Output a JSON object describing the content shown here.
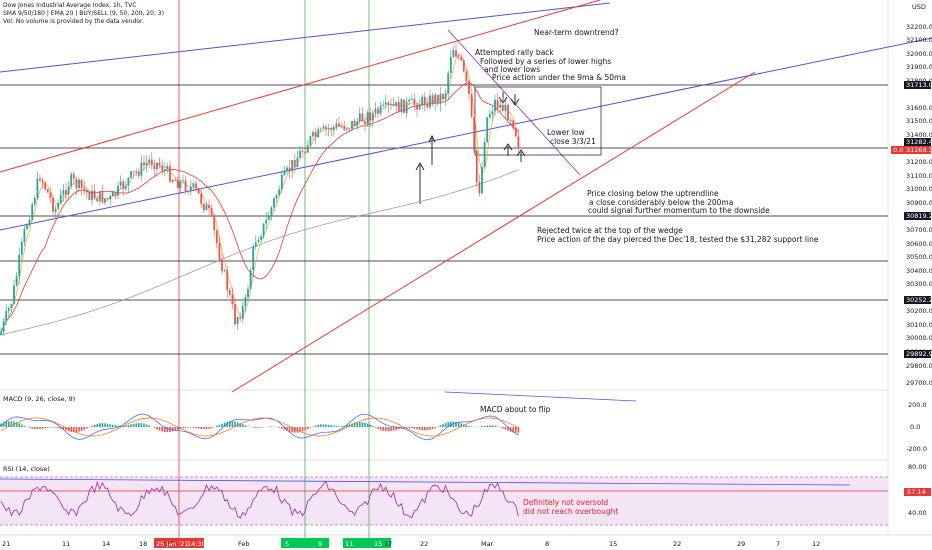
{
  "header": {
    "symbol_line": "Dow Jones Industrial Average Index, 1h, TVC",
    "indicators_line": "SMA 9/50/180 | EMA 20 | BUY/SELL (9, 50, 200, 20, 3)",
    "volume_note": "Vol: No volume is provided by the data vendor.",
    "currency": "USD"
  },
  "price_axis": {
    "ticks": [
      "32200.0",
      "32100.0",
      "32000.0",
      "31900.0",
      "31800.0",
      "31600.0",
      "31500.0",
      "31400.0",
      "31300.0",
      "31200.0",
      "31100.0",
      "31000.0",
      "30900.0",
      "30700.0",
      "30600.0",
      "30500.0",
      "30400.0",
      "30300.0",
      "30200.0",
      "30100.0",
      "30000.0",
      "29900.0",
      "29800.0",
      "29700.0"
    ],
    "tagged": [
      {
        "label": "31713.0",
        "style": "black"
      },
      {
        "label": "31282.4",
        "style": "black"
      },
      {
        "label": "31269.3",
        "prefix": "0.0",
        "style": "red"
      },
      {
        "label": "30819.2",
        "style": "black"
      },
      {
        "label": "30252.2",
        "style": "black"
      },
      {
        "label": "29892.9",
        "style": "black"
      }
    ]
  },
  "macd_panel": {
    "title": "MACD (9, 26, close, 9)",
    "ticks": [
      "200.0",
      "0.0",
      "-200.0"
    ]
  },
  "rsi_panel": {
    "title": "RSI (14, close)",
    "ticks": [
      "80.00",
      "57.14",
      "40.00"
    ]
  },
  "time_axis": {
    "labels": [
      "21",
      "11",
      "14",
      "18",
      "20",
      "25 Jan '21",
      "14:30",
      "Feb",
      "5",
      "9",
      "11",
      "15",
      "17",
      "22",
      "Mar",
      "8",
      "15",
      "22",
      "29",
      "7",
      "12"
    ],
    "highlight_label": "25 Jan '21  14:30"
  },
  "annotations": {
    "near_term": "Near-term downtrend?",
    "rally_1": "Attempted rally back",
    "rally_2": "Followed by a series of lower highs",
    "rally_3": "and lower lows",
    "rally_4": "Price action under the 9ma & 50ma",
    "lower_low_1": "Lower low",
    "lower_low_2": "close 3/3/21",
    "closing_1": "Price closing below the uptrendline",
    "closing_2": "a close considerably below the 200ma",
    "closing_3": "could signal further momentum to the downside",
    "rejected_1": "Rejected twice at the top of the wedge",
    "rejected_2": "Price action of the day pierced the Dec'18, tested the $31,282 support line",
    "macd_note": "MACD about to flip",
    "rsi_note_1": "Definitely not oversold",
    "rsi_note_2": "did not reach overbought"
  },
  "colors": {
    "up": "#26a69a",
    "down": "#ef5350",
    "sma9": "#f5a623",
    "sma50": "#e53935",
    "sma180": "#9e9e9e",
    "trend_blue": "#5b4fd6",
    "trend_red": "#e53935",
    "rsi_band": "#f3e5f5"
  }
}
